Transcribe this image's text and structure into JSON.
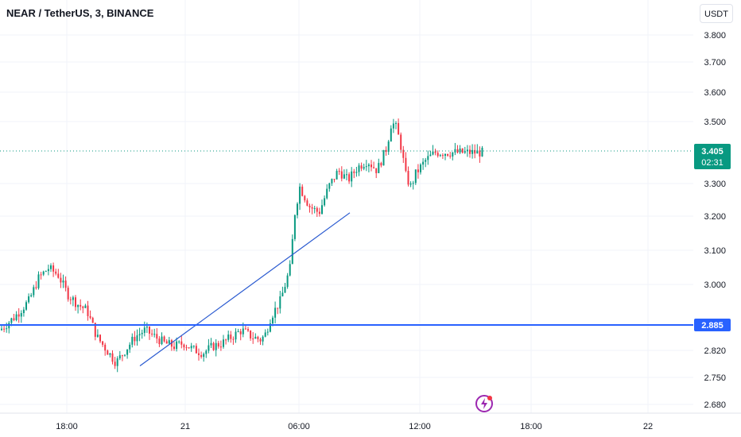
{
  "header": {
    "title": "NEAR / TetherUS, 3, BINANCE",
    "currency_button": "USDT"
  },
  "chart_data": {
    "type": "candlestick",
    "title": "NEAR / TetherUS, 3, BINANCE",
    "y_unit": "USDT",
    "y_ticks": [
      "3.800",
      "3.700",
      "3.600",
      "3.500",
      "3.300",
      "3.200",
      "3.100",
      "3.000",
      "2.820",
      "2.750",
      "2.680"
    ],
    "x_ticks": [
      "18:00",
      "21",
      "06:00",
      "12:00",
      "18:00",
      "22"
    ],
    "ylim": [
      2.66,
      3.86
    ],
    "grid": true,
    "last_price": {
      "value": "3.405",
      "countdown": "02:31",
      "color": "#089981"
    },
    "horizontal_line": {
      "value": "2.885",
      "color": "#2962ff"
    },
    "trend_line": {
      "color": "#2a5ad0",
      "from": {
        "time_index": 0.0,
        "price": 2.75
      },
      "to": {
        "time_index": 1.0,
        "price": 3.22
      }
    },
    "series_path": [
      [
        0,
        2.86
      ],
      [
        0.03,
        2.9
      ],
      [
        0.06,
        2.95
      ],
      [
        0.08,
        3.02
      ],
      [
        0.1,
        3.05
      ],
      [
        0.12,
        3.03
      ],
      [
        0.14,
        2.97
      ],
      [
        0.16,
        2.94
      ],
      [
        0.18,
        2.92
      ],
      [
        0.2,
        2.84
      ],
      [
        0.22,
        2.8
      ],
      [
        0.24,
        2.76
      ],
      [
        0.26,
        2.8
      ],
      [
        0.28,
        2.84
      ],
      [
        0.3,
        2.86
      ],
      [
        0.32,
        2.84
      ],
      [
        0.34,
        2.82
      ],
      [
        0.36,
        2.81
      ],
      [
        0.38,
        2.82
      ],
      [
        0.4,
        2.8
      ],
      [
        0.42,
        2.79
      ],
      [
        0.44,
        2.81
      ],
      [
        0.46,
        2.82
      ],
      [
        0.48,
        2.84
      ],
      [
        0.5,
        2.86
      ],
      [
        0.52,
        2.84
      ],
      [
        0.54,
        2.83
      ],
      [
        0.55,
        2.85
      ],
      [
        0.56,
        2.9
      ],
      [
        0.58,
        2.95
      ],
      [
        0.6,
        3.05
      ],
      [
        0.61,
        3.22
      ],
      [
        0.62,
        3.3
      ],
      [
        0.64,
        3.24
      ],
      [
        0.66,
        3.22
      ],
      [
        0.68,
        3.3
      ],
      [
        0.7,
        3.35
      ],
      [
        0.72,
        3.32
      ],
      [
        0.74,
        3.36
      ],
      [
        0.76,
        3.38
      ],
      [
        0.78,
        3.35
      ],
      [
        0.8,
        3.42
      ],
      [
        0.81,
        3.5
      ],
      [
        0.82,
        3.48
      ],
      [
        0.83,
        3.42
      ],
      [
        0.84,
        3.33
      ],
      [
        0.85,
        3.3
      ],
      [
        0.86,
        3.34
      ],
      [
        0.88,
        3.38
      ],
      [
        0.9,
        3.405
      ]
    ],
    "watermark": "tradingview-bolt-icon"
  }
}
